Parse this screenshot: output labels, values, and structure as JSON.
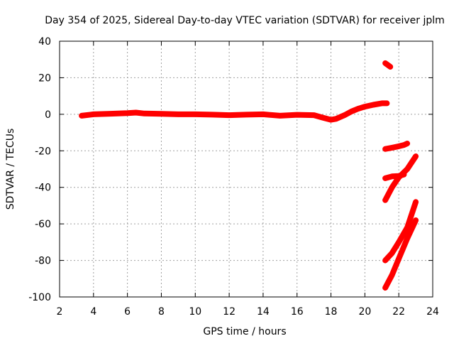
{
  "chart_data": {
    "type": "scatter",
    "title": "Day 354 of 2025, Sidereal Day-to-day VTEC variation (SDTVAR) for receiver jplm",
    "xlabel": "GPS time / hours",
    "ylabel": "SDTVAR / TECUs",
    "xlim": [
      2,
      24
    ],
    "ylim": [
      -100,
      40
    ],
    "xticks": [
      2,
      4,
      6,
      8,
      10,
      12,
      14,
      16,
      18,
      20,
      22,
      24
    ],
    "yticks": [
      -100,
      -80,
      -60,
      -40,
      -20,
      0,
      20,
      40
    ],
    "grid": true,
    "color": "#ff0000",
    "series": [
      {
        "values": [
          [
            3.3,
            -0.8
          ],
          [
            4,
            0
          ],
          [
            5,
            0.3
          ],
          [
            6,
            0.6
          ],
          [
            6.5,
            0.9
          ],
          [
            7,
            0.4
          ],
          [
            8,
            0.2
          ],
          [
            9,
            0
          ],
          [
            10,
            0
          ],
          [
            11,
            -0.2
          ],
          [
            12,
            -0.5
          ],
          [
            13,
            -0.2
          ],
          [
            14,
            0
          ],
          [
            15,
            -0.8
          ],
          [
            16,
            -0.3
          ],
          [
            17,
            -0.5
          ],
          [
            17.5,
            -1.8
          ],
          [
            18,
            -3
          ],
          [
            18.3,
            -2.5
          ],
          [
            18.8,
            -0.5
          ],
          [
            19.2,
            1.5
          ],
          [
            19.6,
            3
          ],
          [
            20,
            4.2
          ],
          [
            20.5,
            5.2
          ],
          [
            21,
            6
          ],
          [
            21.3,
            6
          ]
        ]
      },
      {
        "values": [
          [
            21.2,
            28
          ],
          [
            21.5,
            26
          ]
        ]
      },
      {
        "values": [
          [
            21.2,
            -19
          ],
          [
            21.6,
            -18.3
          ],
          [
            22,
            -17.5
          ],
          [
            22.3,
            -16.8
          ],
          [
            22.5,
            -16
          ]
        ]
      },
      {
        "values": [
          [
            21.2,
            -35
          ],
          [
            21.6,
            -34
          ],
          [
            22,
            -33.8
          ],
          [
            22.3,
            -33
          ]
        ]
      },
      {
        "values": [
          [
            21.2,
            -47
          ],
          [
            21.6,
            -40
          ],
          [
            22,
            -34.5
          ],
          [
            22.5,
            -30
          ],
          [
            23,
            -23
          ]
        ]
      },
      {
        "values": [
          [
            21.2,
            -80
          ],
          [
            21.6,
            -76
          ],
          [
            22,
            -70
          ],
          [
            22.5,
            -62
          ],
          [
            23,
            -48
          ]
        ]
      },
      {
        "values": [
          [
            21.2,
            -95
          ],
          [
            21.6,
            -88
          ],
          [
            22,
            -79
          ],
          [
            22.5,
            -68
          ],
          [
            23,
            -58
          ]
        ]
      }
    ]
  }
}
